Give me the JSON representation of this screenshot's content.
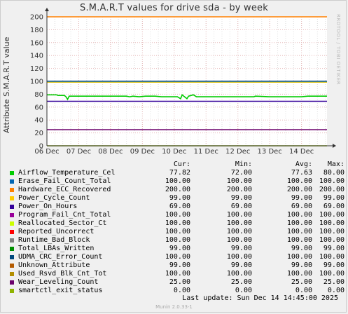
{
  "chart_data": {
    "type": "line",
    "title": "S.M.A.R.T values for drive sda - by week",
    "ylabel": "Attribute S.M.A.R.T value",
    "ylim": [
      0,
      200
    ],
    "yticks": [
      0,
      20,
      40,
      60,
      80,
      100,
      120,
      140,
      160,
      180,
      200
    ],
    "xlim": [
      6,
      14.8
    ],
    "xticks": [
      {
        "value": 6,
        "label": "06 Dec"
      },
      {
        "value": 7,
        "label": "07 Dec"
      },
      {
        "value": 8,
        "label": "08 Dec"
      },
      {
        "value": 9,
        "label": "09 Dec"
      },
      {
        "value": 10,
        "label": "10 Dec"
      },
      {
        "value": 11,
        "label": "11 Dec"
      },
      {
        "value": 12,
        "label": "12 Dec"
      },
      {
        "value": 13,
        "label": "13 Dec"
      },
      {
        "value": 14,
        "label": "14 Dec"
      }
    ],
    "grid": true,
    "columns": [
      "Cur:",
      "Min:",
      "Avg:",
      "Max:"
    ],
    "series": [
      {
        "name": "Airflow_Temperature_Cel",
        "color": "#00cc00",
        "cur": "77.82",
        "min": "72.00",
        "avg": "77.63",
        "max": "80.00",
        "points": [
          [
            6,
            79
          ],
          [
            6.3,
            79
          ],
          [
            6.35,
            78
          ],
          [
            6.55,
            78
          ],
          [
            6.6,
            76
          ],
          [
            6.65,
            72
          ],
          [
            6.7,
            77
          ],
          [
            7.5,
            77
          ],
          [
            7.9,
            77
          ],
          [
            8.2,
            77
          ],
          [
            8.5,
            77
          ],
          [
            8.6,
            76
          ],
          [
            8.7,
            77
          ],
          [
            8.9,
            76
          ],
          [
            9.1,
            77
          ],
          [
            9.4,
            77
          ],
          [
            9.6,
            76
          ],
          [
            9.9,
            76
          ],
          [
            10.1,
            76
          ],
          [
            10.2,
            73
          ],
          [
            10.25,
            79
          ],
          [
            10.3,
            77
          ],
          [
            10.4,
            73
          ],
          [
            10.45,
            77
          ],
          [
            10.6,
            79
          ],
          [
            10.7,
            76
          ],
          [
            11,
            76
          ],
          [
            11.5,
            76
          ],
          [
            12,
            76
          ],
          [
            12.5,
            76
          ],
          [
            12.55,
            77
          ],
          [
            13,
            76
          ],
          [
            13.5,
            76
          ],
          [
            14,
            76
          ],
          [
            14.2,
            77
          ],
          [
            14.8,
            77
          ]
        ]
      },
      {
        "name": "Erase_Fail_Count_Total",
        "color": "#0066b3",
        "cur": "100.00",
        "min": "100.00",
        "avg": "100.00",
        "max": "100.00",
        "points": [
          [
            6,
            100
          ],
          [
            14.8,
            100
          ]
        ]
      },
      {
        "name": "Hardware_ECC_Recovered",
        "color": "#ff8000",
        "cur": "200.00",
        "min": "200.00",
        "avg": "200.00",
        "max": "200.00",
        "points": [
          [
            6,
            200
          ],
          [
            14.8,
            200
          ]
        ]
      },
      {
        "name": "Power_Cycle_Count",
        "color": "#ffcc00",
        "cur": "99.00",
        "min": "99.00",
        "avg": "99.00",
        "max": "99.00",
        "points": [
          [
            6,
            99
          ],
          [
            14.8,
            99
          ]
        ]
      },
      {
        "name": "Power_On_Hours",
        "color": "#330099",
        "cur": "69.00",
        "min": "69.00",
        "avg": "69.00",
        "max": "69.00",
        "points": [
          [
            6,
            69
          ],
          [
            14.8,
            69
          ]
        ]
      },
      {
        "name": "Program_Fail_Cnt_Total",
        "color": "#990099",
        "cur": "100.00",
        "min": "100.00",
        "avg": "100.00",
        "max": "100.00",
        "points": [
          [
            6,
            100
          ],
          [
            14.8,
            100
          ]
        ]
      },
      {
        "name": "Reallocated_Sector_Ct",
        "color": "#ccff00",
        "cur": "100.00",
        "min": "100.00",
        "avg": "100.00",
        "max": "100.00",
        "points": [
          [
            6,
            100
          ],
          [
            14.8,
            100
          ]
        ]
      },
      {
        "name": "Reported_Uncorrect",
        "color": "#ff0000",
        "cur": "100.00",
        "min": "100.00",
        "avg": "100.00",
        "max": "100.00",
        "points": [
          [
            6,
            100
          ],
          [
            14.8,
            100
          ]
        ]
      },
      {
        "name": "Runtime_Bad_Block",
        "color": "#808080",
        "cur": "100.00",
        "min": "100.00",
        "avg": "100.00",
        "max": "100.00",
        "points": [
          [
            6,
            100
          ],
          [
            14.8,
            100
          ]
        ]
      },
      {
        "name": "Total_LBAs_Written",
        "color": "#008f00",
        "cur": "99.00",
        "min": "99.00",
        "avg": "99.00",
        "max": "99.00",
        "points": [
          [
            6,
            99
          ],
          [
            14.8,
            99
          ]
        ]
      },
      {
        "name": "UDMA_CRC_Error_Count",
        "color": "#00487d",
        "cur": "100.00",
        "min": "100.00",
        "avg": "100.00",
        "max": "100.00",
        "points": [
          [
            6,
            100
          ],
          [
            14.8,
            100
          ]
        ]
      },
      {
        "name": "Unknown_Attribute",
        "color": "#b35a00",
        "cur": "99.00",
        "min": "99.00",
        "avg": "99.00",
        "max": "99.00",
        "points": [
          [
            6,
            99
          ],
          [
            14.8,
            99
          ]
        ]
      },
      {
        "name": "Used_Rsvd_Blk_Cnt_Tot",
        "color": "#b38f00",
        "cur": "100.00",
        "min": "100.00",
        "avg": "100.00",
        "max": "100.00",
        "points": [
          [
            6,
            100
          ],
          [
            14.8,
            100
          ]
        ]
      },
      {
        "name": "Wear_Leveling_Count",
        "color": "#6b006b",
        "cur": "25.00",
        "min": "25.00",
        "avg": "25.00",
        "max": "25.00",
        "points": [
          [
            6,
            25
          ],
          [
            14.8,
            25
          ]
        ]
      },
      {
        "name": "smartctl_exit_status",
        "color": "#8fb300",
        "cur": "0.00",
        "min": "0.00",
        "avg": "0.00",
        "max": "0.00",
        "points": [
          [
            6,
            0
          ],
          [
            14.8,
            0
          ]
        ]
      }
    ]
  },
  "watermark": "RRDTOOL / TOBI OETIKER",
  "last_update": "Last update:  Sun Dec 14 14:45:00 2025",
  "footer": "Munin 2.0.33-1"
}
